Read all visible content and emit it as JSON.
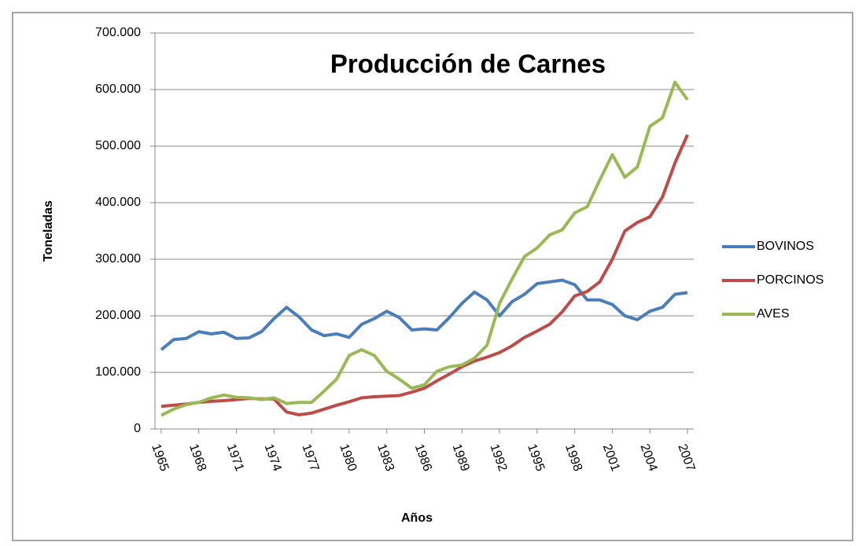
{
  "chart_data": {
    "type": "line",
    "title": "Producción de Carnes",
    "x_label": "Años",
    "y_label": "Toneladas",
    "x": [
      1965,
      1966,
      1967,
      1968,
      1969,
      1970,
      1971,
      1972,
      1973,
      1974,
      1975,
      1976,
      1977,
      1978,
      1979,
      1980,
      1981,
      1982,
      1983,
      1984,
      1985,
      1986,
      1987,
      1988,
      1989,
      1990,
      1991,
      1992,
      1993,
      1994,
      1995,
      1996,
      1997,
      1998,
      1999,
      2000,
      2001,
      2002,
      2003,
      2004,
      2005,
      2006,
      2007
    ],
    "series": [
      {
        "name": "BOVINOS",
        "color": "#4a7ebb",
        "values": [
          140000,
          158000,
          160000,
          172000,
          168000,
          171000,
          160000,
          161000,
          172000,
          195000,
          215000,
          198000,
          175000,
          165000,
          168000,
          162000,
          185000,
          195000,
          208000,
          197000,
          175000,
          177000,
          175000,
          197000,
          222000,
          242000,
          228000,
          200000,
          225000,
          238000,
          257000,
          260000,
          263000,
          255000,
          228000,
          228000,
          220000,
          200000,
          193000,
          208000,
          215000,
          238000,
          241000
        ]
      },
      {
        "name": "PORCINOS",
        "color": "#be4b48",
        "values": [
          40000,
          42000,
          44000,
          47000,
          49000,
          50000,
          52000,
          54000,
          53000,
          53000,
          30000,
          25000,
          28000,
          35000,
          42000,
          48000,
          55000,
          57000,
          58000,
          59000,
          65000,
          72000,
          85000,
          97000,
          110000,
          120000,
          127000,
          135000,
          147000,
          162000,
          173000,
          185000,
          207000,
          235000,
          243000,
          260000,
          300000,
          350000,
          365000,
          375000,
          410000,
          470000,
          520000
        ]
      },
      {
        "name": "AVES",
        "color": "#98b954",
        "values": [
          24000,
          35000,
          43000,
          47000,
          55000,
          60000,
          56000,
          55000,
          52000,
          55000,
          45000,
          47000,
          47000,
          67000,
          88000,
          130000,
          140000,
          130000,
          102000,
          88000,
          72000,
          78000,
          102000,
          110000,
          113000,
          125000,
          148000,
          222000,
          265000,
          305000,
          320000,
          343000,
          352000,
          382000,
          393000,
          440000,
          485000,
          445000,
          463000,
          535000,
          550000,
          613000,
          582000
        ]
      }
    ],
    "xlim": [
      1964.5,
      2007.5
    ],
    "xticks": [
      1965,
      1968,
      1971,
      1974,
      1977,
      1980,
      1983,
      1986,
      1989,
      1992,
      1995,
      1998,
      2001,
      2004,
      2007
    ],
    "ylim": [
      0,
      700000
    ],
    "yticks": [
      0,
      {
        "value": 100000,
        "label": "100.000"
      },
      {
        "value": 200000,
        "label": "200.000"
      },
      {
        "value": 300000,
        "label": "300.000"
      },
      {
        "value": 400000,
        "label": "400.000"
      },
      {
        "value": 500000,
        "label": "500.000"
      },
      {
        "value": 600000,
        "label": "600.000"
      },
      {
        "value": 700000,
        "label": "700.000"
      }
    ],
    "grid": true,
    "legend": "right"
  }
}
